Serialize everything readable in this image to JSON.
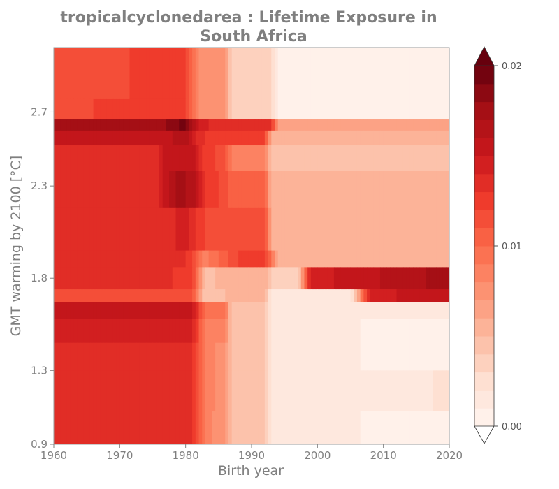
{
  "chart_data": {
    "type": "heatmap",
    "title_line1": "tropicalcyclonedarea : Lifetime Exposure in",
    "title_line2": "South Africa",
    "xlabel": "Birth year",
    "ylabel": "GMT warming by 2100 [°C]",
    "xlim": [
      1960,
      2020
    ],
    "ylim": [
      0.9,
      3.05
    ],
    "xticks": [
      1960,
      1970,
      1980,
      1990,
      2000,
      2010,
      2020
    ],
    "xtick_labels": [
      "1960",
      "1970",
      "1980",
      "1990",
      "2000",
      "2010",
      "2020"
    ],
    "yticks": [
      0.9,
      1.3,
      1.8,
      2.3,
      2.7
    ],
    "ytick_labels": [
      "0.9",
      "1.3",
      "1.8",
      "2.3",
      "2.7"
    ],
    "colorbar": {
      "min": 0.0,
      "max": 0.02,
      "levels": 21,
      "ticks": [
        0.0,
        0.01,
        0.02
      ],
      "tick_labels": [
        "0.00",
        "0.01",
        "0.02"
      ],
      "extend": "both",
      "colormap": "Reds"
    },
    "y_bands": [
      {
        "y0": 2.77,
        "y1": 3.05,
        "x": [
          1960,
          1971,
          1972,
          1980,
          1982,
          1986,
          1987,
          1993,
          1994,
          2006,
          2007,
          2020
        ],
        "v": [
          0.0115,
          0.0115,
          0.0125,
          0.0125,
          0.0075,
          0.0072,
          0.0035,
          0.0035,
          0.0008,
          0.0008,
          0.0003,
          0.0003
        ]
      },
      {
        "y0": 2.66,
        "y1": 2.77,
        "x": [
          1960,
          1972,
          1980,
          1982,
          1986,
          1987,
          1993,
          1994,
          2006,
          2007,
          2020
        ],
        "v": [
          0.0115,
          0.0125,
          0.0125,
          0.0075,
          0.0072,
          0.0035,
          0.0035,
          0.0008,
          0.0008,
          0.0003,
          0.0003
        ]
      },
      {
        "y0": 2.6,
        "y1": 2.66,
        "x": [
          1960,
          1976,
          1980,
          1982,
          1984,
          1993,
          1994,
          2020
        ],
        "v": [
          0.0175,
          0.0175,
          0.0195,
          0.015,
          0.0135,
          0.0135,
          0.0065,
          0.006
        ]
      },
      {
        "y0": 2.52,
        "y1": 2.6,
        "x": [
          1960,
          1976,
          1980,
          1982,
          1984,
          1992,
          1993,
          2020
        ],
        "v": [
          0.0155,
          0.0155,
          0.0165,
          0.0135,
          0.0125,
          0.0125,
          0.0055,
          0.005
        ]
      },
      {
        "y0": 2.38,
        "y1": 2.52,
        "x": [
          1960,
          1976,
          1977,
          1981,
          1983,
          1986,
          1987,
          1992,
          1993,
          2020
        ],
        "v": [
          0.0135,
          0.0135,
          0.0155,
          0.0155,
          0.0125,
          0.0115,
          0.0085,
          0.0085,
          0.0045,
          0.0045
        ]
      },
      {
        "y0": 2.18,
        "y1": 2.38,
        "x": [
          1960,
          1976,
          1977,
          1979,
          1981,
          1983,
          1986,
          1987,
          1992,
          1993,
          2020
        ],
        "v": [
          0.0135,
          0.0135,
          0.0155,
          0.0175,
          0.0165,
          0.013,
          0.0115,
          0.0105,
          0.0105,
          0.0055,
          0.0055
        ]
      },
      {
        "y0": 1.95,
        "y1": 2.18,
        "x": [
          1960,
          1977,
          1980,
          1981,
          1983,
          1986,
          1992,
          1993,
          2020
        ],
        "v": [
          0.0135,
          0.0135,
          0.0145,
          0.0135,
          0.012,
          0.0115,
          0.0115,
          0.0055,
          0.0055
        ]
      },
      {
        "y0": 1.86,
        "y1": 1.95,
        "x": [
          1960,
          1980,
          1981,
          1983,
          1986,
          1988,
          1992,
          1994,
          2020
        ],
        "v": [
          0.0135,
          0.0135,
          0.0115,
          0.0085,
          0.0105,
          0.012,
          0.0125,
          0.006,
          0.0055
        ]
      },
      {
        "y0": 1.74,
        "y1": 1.86,
        "x": [
          1960,
          1975,
          1981,
          1983,
          1986,
          1992,
          1993,
          1997,
          1999,
          2020
        ],
        "v": [
          0.0135,
          0.0135,
          0.0125,
          0.0045,
          0.0055,
          0.0055,
          0.0035,
          0.0035,
          0.0145,
          0.0175
        ]
      },
      {
        "y0": 1.67,
        "y1": 1.74,
        "x": [
          1960,
          1975,
          1981,
          1983,
          1986,
          1992,
          1993,
          2005,
          2008,
          2020
        ],
        "v": [
          0.012,
          0.0115,
          0.0115,
          0.004,
          0.005,
          0.005,
          0.0015,
          0.0015,
          0.0145,
          0.016
        ]
      },
      {
        "y0": 1.58,
        "y1": 1.67,
        "x": [
          1960,
          1981,
          1983,
          1986,
          1987,
          1992,
          1993,
          2020
        ],
        "v": [
          0.0155,
          0.0155,
          0.0095,
          0.0095,
          0.0045,
          0.0045,
          0.0012,
          0.0012
        ]
      },
      {
        "y0": 1.45,
        "y1": 1.58,
        "x": [
          1960,
          1981,
          1983,
          1986,
          1987,
          1992,
          1993,
          2020
        ],
        "v": [
          0.0145,
          0.0145,
          0.0085,
          0.0085,
          0.0045,
          0.0045,
          0.0012,
          0.0008
        ]
      },
      {
        "y0": 1.3,
        "y1": 1.45,
        "x": [
          1960,
          1981,
          1983,
          1986,
          1987,
          1992,
          1993,
          2005,
          2007,
          2020
        ],
        "v": [
          0.0135,
          0.0135,
          0.0085,
          0.0075,
          0.0045,
          0.0045,
          0.0015,
          0.0015,
          0.0008,
          0.0008
        ]
      },
      {
        "y0": 1.08,
        "y1": 1.3,
        "x": [
          1960,
          1981,
          1983,
          1986,
          1987,
          1992,
          1993,
          2015,
          2020
        ],
        "v": [
          0.0135,
          0.0135,
          0.0085,
          0.0075,
          0.0045,
          0.0045,
          0.0015,
          0.0015,
          0.0025
        ]
      },
      {
        "y0": 0.9,
        "y1": 1.08,
        "x": [
          1960,
          1981,
          1983,
          1986,
          1987,
          1992,
          1993,
          2020
        ],
        "v": [
          0.0135,
          0.0135,
          0.0085,
          0.0072,
          0.0045,
          0.0045,
          0.0012,
          0.0008
        ]
      }
    ]
  }
}
